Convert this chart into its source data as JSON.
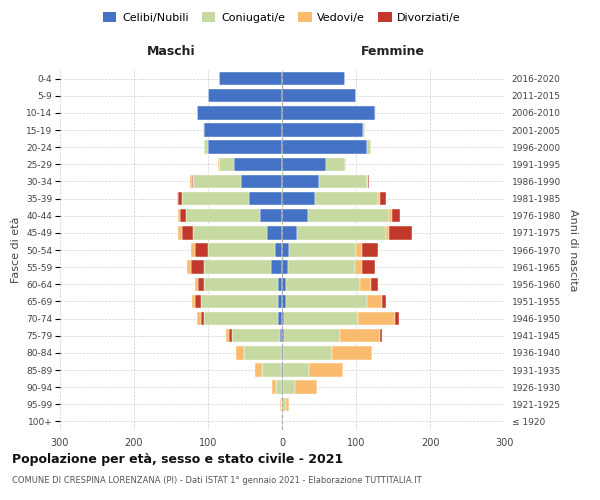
{
  "age_groups": [
    "100+",
    "95-99",
    "90-94",
    "85-89",
    "80-84",
    "75-79",
    "70-74",
    "65-69",
    "60-64",
    "55-59",
    "50-54",
    "45-49",
    "40-44",
    "35-39",
    "30-34",
    "25-29",
    "20-24",
    "15-19",
    "10-14",
    "5-9",
    "0-4"
  ],
  "birth_years": [
    "≤ 1920",
    "1921-1925",
    "1926-1930",
    "1931-1935",
    "1936-1940",
    "1941-1945",
    "1946-1950",
    "1951-1955",
    "1956-1960",
    "1961-1965",
    "1966-1970",
    "1971-1975",
    "1976-1980",
    "1981-1985",
    "1986-1990",
    "1991-1995",
    "1996-2000",
    "2001-2005",
    "2006-2010",
    "2011-2015",
    "2016-2020"
  ],
  "maschi": {
    "celibi": [
      0,
      0,
      0,
      2,
      2,
      3,
      5,
      5,
      5,
      15,
      10,
      20,
      30,
      45,
      55,
      65,
      100,
      105,
      115,
      100,
      85
    ],
    "coniugati": [
      1,
      2,
      8,
      25,
      50,
      65,
      100,
      105,
      100,
      90,
      90,
      100,
      100,
      90,
      65,
      20,
      5,
      2,
      0,
      0,
      0
    ],
    "vedovi": [
      0,
      1,
      5,
      10,
      10,
      5,
      5,
      5,
      5,
      5,
      5,
      5,
      3,
      2,
      2,
      1,
      0,
      0,
      0,
      0,
      0
    ],
    "divorziati": [
      0,
      0,
      0,
      0,
      0,
      3,
      5,
      7,
      8,
      18,
      18,
      15,
      8,
      5,
      2,
      0,
      0,
      0,
      0,
      0,
      0
    ]
  },
  "femmine": {
    "nubili": [
      0,
      0,
      2,
      2,
      2,
      3,
      3,
      5,
      5,
      8,
      10,
      20,
      35,
      45,
      50,
      60,
      115,
      110,
      125,
      100,
      85
    ],
    "coniugate": [
      1,
      5,
      15,
      35,
      65,
      75,
      100,
      110,
      100,
      90,
      90,
      120,
      110,
      85,
      65,
      25,
      5,
      2,
      2,
      0,
      0
    ],
    "vedove": [
      1,
      5,
      30,
      45,
      55,
      55,
      50,
      20,
      15,
      10,
      8,
      5,
      3,
      2,
      1,
      1,
      0,
      0,
      0,
      0,
      0
    ],
    "divorziate": [
      0,
      0,
      0,
      0,
      0,
      2,
      5,
      5,
      10,
      18,
      22,
      30,
      12,
      8,
      2,
      0,
      0,
      0,
      0,
      0,
      0
    ]
  },
  "colors": {
    "celibi_nubili": "#4472C4",
    "coniugati": "#C5D9A0",
    "vedovi": "#FABB6E",
    "divorziati": "#C0392B"
  },
  "xlim": 300,
  "title": "Popolazione per età, sesso e stato civile - 2021",
  "subtitle": "COMUNE DI CRESPINA LORENZANA (PI) - Dati ISTAT 1° gennaio 2021 - Elaborazione TUTTITALIA.IT",
  "ylabel_left": "Fasce di età",
  "ylabel_right": "Anni di nascita",
  "legend_labels": [
    "Celibi/Nubili",
    "Coniugati/e",
    "Vedovi/e",
    "Divorziati/e"
  ],
  "maschi_label": "Maschi",
  "femmine_label": "Femmine"
}
